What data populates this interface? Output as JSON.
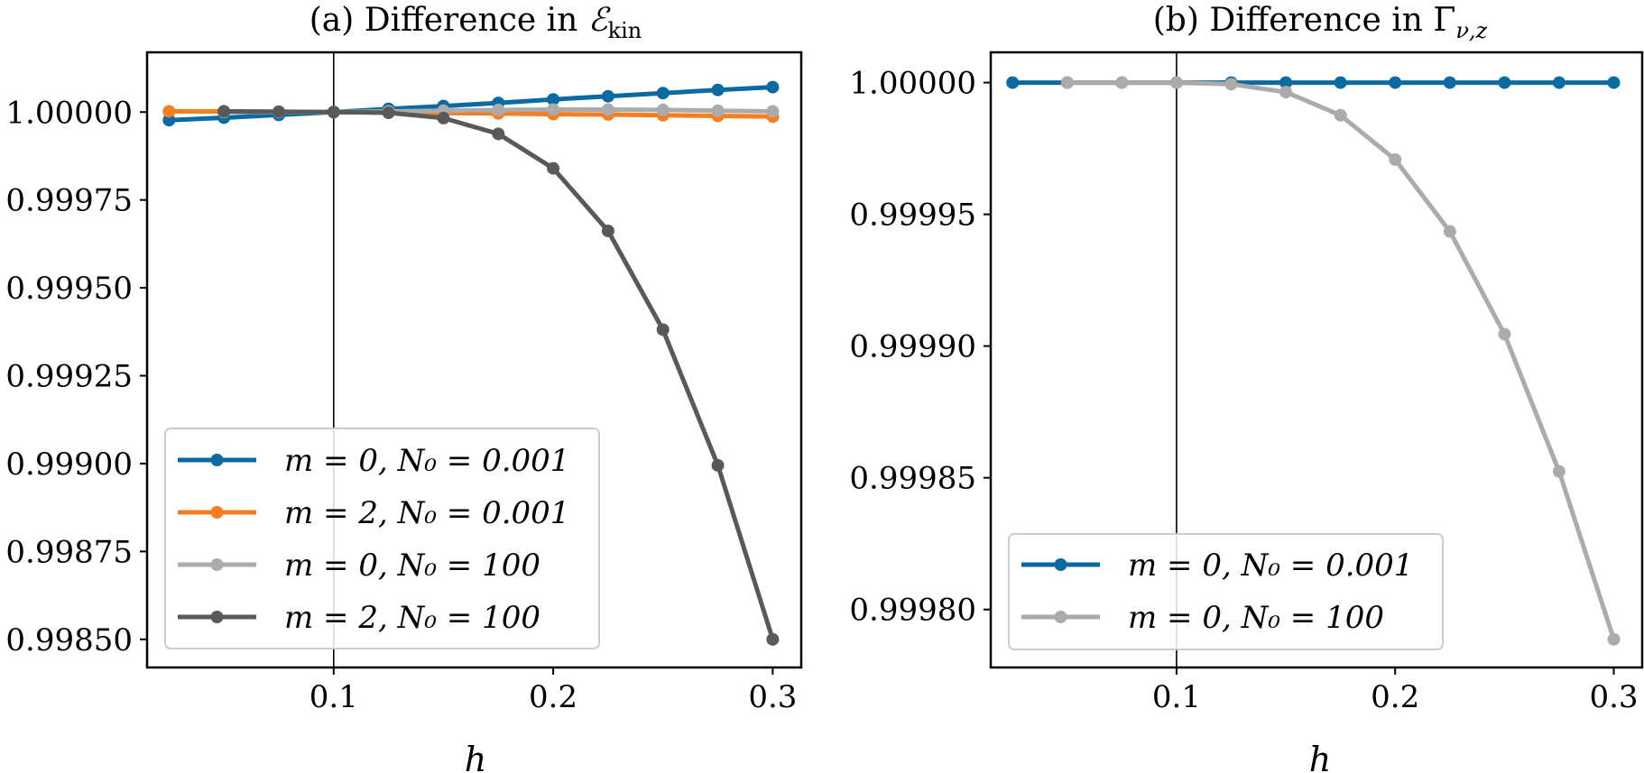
{
  "chart_data": [
    {
      "type": "line",
      "title": "(a) Difference in ℰ_kin",
      "xlabel": "h",
      "ylabel": "",
      "xlim": [
        0.015,
        0.313
      ],
      "ylim": [
        0.99842,
        1.00017
      ],
      "xticks": [
        0.1,
        0.2,
        0.3
      ],
      "xtick_labels": [
        "0.1",
        "0.2",
        "0.3"
      ],
      "yticks": [
        0.9985,
        0.99875,
        0.999,
        0.99925,
        0.9995,
        0.99975,
        1.0
      ],
      "ytick_labels": [
        "0.99850",
        "0.99875",
        "0.99900",
        "0.99925",
        "0.99950",
        "0.99975",
        "1.00000"
      ],
      "reference_line_x": 0.1,
      "grid": false,
      "legend_position": "lower-left",
      "series": [
        {
          "name": "m = 0, N₀ = 0.001",
          "color": "#0b6aa2",
          "x": [
            0.025,
            0.05,
            0.075,
            0.1,
            0.125,
            0.15,
            0.175,
            0.2,
            0.225,
            0.25,
            0.275,
            0.3
          ],
          "values": [
            0.999977,
            0.999984,
            0.999992,
            1.0,
            1.000009,
            1.000017,
            1.000026,
            1.000036,
            1.000045,
            1.000054,
            1.000063,
            1.000071
          ]
        },
        {
          "name": "m = 2, N₀ = 0.001",
          "color": "#f57f20",
          "x": [
            0.025,
            0.05,
            0.075,
            0.1,
            0.125,
            0.15,
            0.175,
            0.2,
            0.225,
            0.25,
            0.275,
            0.3
          ],
          "values": [
            1.000002,
            1.000002,
            1.000001,
            1.0,
            0.999999,
            0.999997,
            0.999996,
            0.999994,
            0.999993,
            0.999991,
            0.999989,
            0.999987
          ]
        },
        {
          "name": "m = 0, N₀ = 100",
          "color": "#ababab",
          "x": [
            0.05,
            0.075,
            0.1,
            0.125,
            0.15,
            0.175,
            0.2,
            0.225,
            0.25,
            0.275,
            0.3
          ],
          "values": [
            1.0,
            1.0,
            1.0,
            1.000002,
            1.000004,
            1.000006,
            1.000007,
            1.000007,
            1.000006,
            1.000004,
            1.000002
          ]
        },
        {
          "name": "m = 2, N₀ = 100",
          "color": "#595959",
          "x": [
            0.05,
            0.075,
            0.1,
            0.125,
            0.15,
            0.175,
            0.2,
            0.225,
            0.25,
            0.275,
            0.3
          ],
          "values": [
            1.000002,
            1.000001,
            1.0,
            0.999998,
            0.999983,
            0.999938,
            0.99984,
            0.999662,
            0.999381,
            0.998995,
            0.9985
          ]
        }
      ]
    },
    {
      "type": "line",
      "title": "(b) Difference in Γ_ν,z",
      "xlabel": "h",
      "ylabel": "",
      "xlim": [
        0.015,
        0.313
      ],
      "ylim": [
        0.999778,
        1.0000115
      ],
      "xticks": [
        0.1,
        0.2,
        0.3
      ],
      "xtick_labels": [
        "0.1",
        "0.2",
        "0.3"
      ],
      "yticks": [
        0.9998,
        0.99985,
        0.9999,
        0.99995,
        1.0
      ],
      "ytick_labels": [
        "0.99980",
        "0.99985",
        "0.99990",
        "0.99995",
        "1.00000"
      ],
      "reference_line_x": 0.1,
      "grid": false,
      "legend_position": "lower-left",
      "series": [
        {
          "name": "m = 0, N₀ = 0.001",
          "color": "#0b6aa2",
          "x": [
            0.025,
            0.05,
            0.075,
            0.1,
            0.125,
            0.15,
            0.175,
            0.2,
            0.225,
            0.25,
            0.275,
            0.3
          ],
          "values": [
            1.0,
            1.0,
            1.0,
            1.0,
            1.0,
            1.0,
            1.0,
            1.0,
            1.0,
            1.0,
            1.0,
            1.0
          ]
        },
        {
          "name": "m = 0, N₀ = 100",
          "color": "#ababab",
          "x": [
            0.05,
            0.075,
            0.1,
            0.125,
            0.15,
            0.175,
            0.2,
            0.225,
            0.25,
            0.275,
            0.3
          ],
          "values": [
            1.0,
            1.0,
            1.0,
            0.9999994,
            0.9999964,
            0.9999876,
            0.9999708,
            0.9999435,
            0.9999045,
            0.9998524,
            0.9997887
          ]
        }
      ]
    }
  ]
}
